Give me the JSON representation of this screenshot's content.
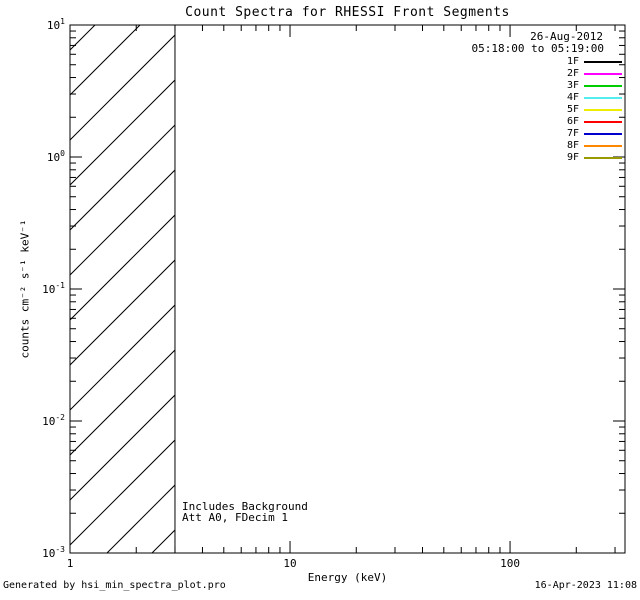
{
  "chart_data": {
    "type": "line",
    "title": "Count Spectra for RHESSI Front Segments",
    "xlabel": "Energy (keV)",
    "ylabel": "counts cm⁻² s⁻¹ keV⁻¹",
    "xscale": "log",
    "yscale": "log",
    "xlim": [
      1,
      333
    ],
    "ylim": [
      0.001,
      10
    ],
    "x_major_ticks": [
      1,
      10,
      100
    ],
    "x_tick_labels": [
      "1",
      "10",
      "100"
    ],
    "y_major_exponents": [
      1,
      0,
      -1,
      -2,
      -3
    ],
    "grid": false,
    "series": [],
    "hatched_region": {
      "x_start": 1,
      "x_end": 3
    },
    "legend_position": "upper right",
    "legend": [
      {
        "label": "1F",
        "color": "#000000"
      },
      {
        "label": "2F",
        "color": "#ff00ff"
      },
      {
        "label": "3F",
        "color": "#00cc00"
      },
      {
        "label": "4F",
        "color": "#55eeee"
      },
      {
        "label": "5F",
        "color": "#eeee00"
      },
      {
        "label": "6F",
        "color": "#ff0000"
      },
      {
        "label": "7F",
        "color": "#0000cc"
      },
      {
        "label": "8F",
        "color": "#ff8800"
      },
      {
        "label": "9F",
        "color": "#999900"
      }
    ],
    "annotations": {
      "date": "26-Aug-2012",
      "time_range": "05:18:00 to 05:19:00",
      "note1": "Includes Background",
      "note2": "Att A0, FDecim 1"
    }
  },
  "footer": {
    "left": "Generated by hsi_min_spectra_plot.pro",
    "right": "16-Apr-2023 11:08"
  }
}
